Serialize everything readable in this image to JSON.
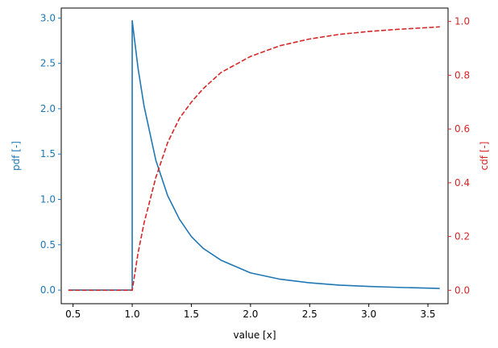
{
  "chart_data": {
    "type": "line",
    "title": "",
    "xlabel": "value [x]",
    "ylabel_left": "pdf [-]",
    "ylabel_right": "cdf [-]",
    "xlim": [
      0.4,
      3.67
    ],
    "ylim_left": [
      -0.15,
      3.11
    ],
    "ylim_right": [
      -0.05,
      1.05
    ],
    "x_ticks": [
      "0.5",
      "1.0",
      "1.5",
      "2.0",
      "2.5",
      "3.0",
      "3.5"
    ],
    "y_left_ticks": [
      "0.0",
      "0.5",
      "1.0",
      "1.5",
      "2.0",
      "2.5",
      "3.0"
    ],
    "y_right_ticks": [
      "0.0",
      "0.2",
      "0.4",
      "0.6",
      "0.8",
      "1.0"
    ],
    "grid": false,
    "legend": "none",
    "colors": {
      "pdf": "#1f77b4",
      "cdf": "#d62728",
      "axis": "#000000"
    },
    "series": [
      {
        "axis": "left",
        "style": "solid",
        "color": "#1f77b4",
        "x": [
          0.46,
          0.8,
          0.99,
          1.0,
          1.0,
          1.05,
          1.1,
          1.2,
          1.3,
          1.4,
          1.5,
          1.6,
          1.75,
          2.0,
          2.25,
          2.5,
          2.75,
          3.0,
          3.25,
          3.6
        ],
        "y": [
          0,
          0,
          0,
          0,
          2.97,
          2.44,
          2.03,
          1.43,
          1.04,
          0.78,
          0.59,
          0.46,
          0.33,
          0.19,
          0.12,
          0.08,
          0.055,
          0.04,
          0.03,
          0.018
        ]
      },
      {
        "axis": "right",
        "style": "dashed",
        "color": "#d62728",
        "x": [
          0.46,
          0.8,
          1.0,
          1.05,
          1.1,
          1.2,
          1.3,
          1.4,
          1.5,
          1.6,
          1.75,
          2.0,
          2.25,
          2.5,
          2.75,
          3.0,
          3.25,
          3.6
        ],
        "y": [
          0,
          0,
          0,
          0.14,
          0.25,
          0.42,
          0.55,
          0.64,
          0.7,
          0.75,
          0.81,
          0.87,
          0.91,
          0.935,
          0.952,
          0.963,
          0.971,
          0.98
        ]
      }
    ]
  }
}
